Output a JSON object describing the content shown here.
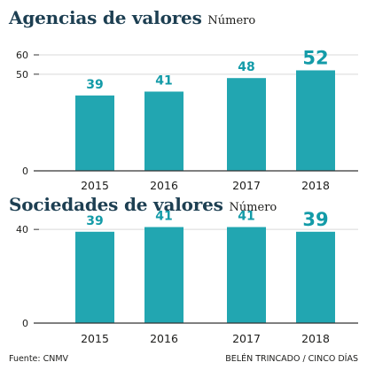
{
  "colors": {
    "bar": "#22a6b1",
    "label": "#139ba8",
    "axis": "#333333",
    "grid": "#d9d9d9",
    "title": "#1d3f52"
  },
  "footer": {
    "source": "Fuente: CNMV",
    "credit": "BELÉN TRINCADO / CINCO DÍAS"
  },
  "chart_data": [
    {
      "type": "bar",
      "title": "Agencias de valores",
      "unit": "Número",
      "categories": [
        "2015",
        "2016",
        "2017",
        "2018"
      ],
      "values": [
        39,
        41,
        48,
        52
      ],
      "data_labels": [
        "39",
        "41",
        "48",
        "52"
      ],
      "highlight_index": 3,
      "yticks": [
        0,
        50,
        60
      ],
      "ylim": [
        0,
        60
      ],
      "grid": true
    },
    {
      "type": "bar",
      "title": "Sociedades de valores",
      "unit": "Número",
      "categories": [
        "2015",
        "2016",
        "2017",
        "2018"
      ],
      "values": [
        39,
        41,
        41,
        39
      ],
      "data_labels": [
        "39",
        "41",
        "41",
        "39"
      ],
      "highlight_index": 3,
      "yticks": [
        0,
        40
      ],
      "ylim": [
        0,
        48
      ],
      "grid": true
    }
  ]
}
